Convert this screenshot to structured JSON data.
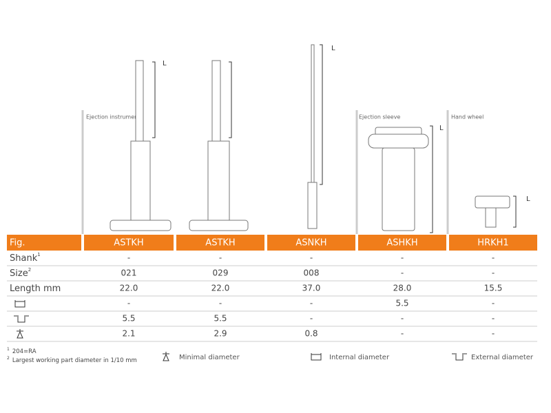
{
  "sections": [
    {
      "label": "Ejection instruments"
    },
    {
      "label": "Ejection sleeve"
    },
    {
      "label": "Hand wheel"
    }
  ],
  "length_marker": "L",
  "table": {
    "header": [
      "Fig.",
      "ASTKH",
      "ASTKH",
      "ASNKH",
      "ASHKH",
      "HRKH1"
    ],
    "rows": [
      {
        "label": "Shank",
        "sup": "1",
        "cells": [
          "-",
          "-",
          "-",
          "-",
          "-"
        ]
      },
      {
        "label": "Size",
        "sup": "2",
        "cells": [
          "021",
          "029",
          "008",
          "-",
          "-"
        ]
      },
      {
        "label": "Length mm",
        "cells": [
          "22.0",
          "22.0",
          "37.0",
          "28.0",
          "15.5"
        ]
      },
      {
        "icon": "internal",
        "cells": [
          "-",
          "-",
          "-",
          "5.5",
          "-"
        ]
      },
      {
        "icon": "external",
        "cells": [
          "5.5",
          "5.5",
          "-",
          "-",
          "-"
        ]
      },
      {
        "icon": "minimal",
        "cells": [
          "2.1",
          "2.9",
          "0.8",
          "-",
          "-"
        ]
      }
    ]
  },
  "footnotes": [
    {
      "mark": "1",
      "text": "204=RA"
    },
    {
      "mark": "2",
      "text": "Largest working part diameter in 1/10 mm"
    }
  ],
  "legend": [
    {
      "icon": "minimal",
      "label": "Minimal diameter"
    },
    {
      "icon": "internal",
      "label": "Internal diameter"
    },
    {
      "icon": "external",
      "label": "External diameter"
    }
  ]
}
